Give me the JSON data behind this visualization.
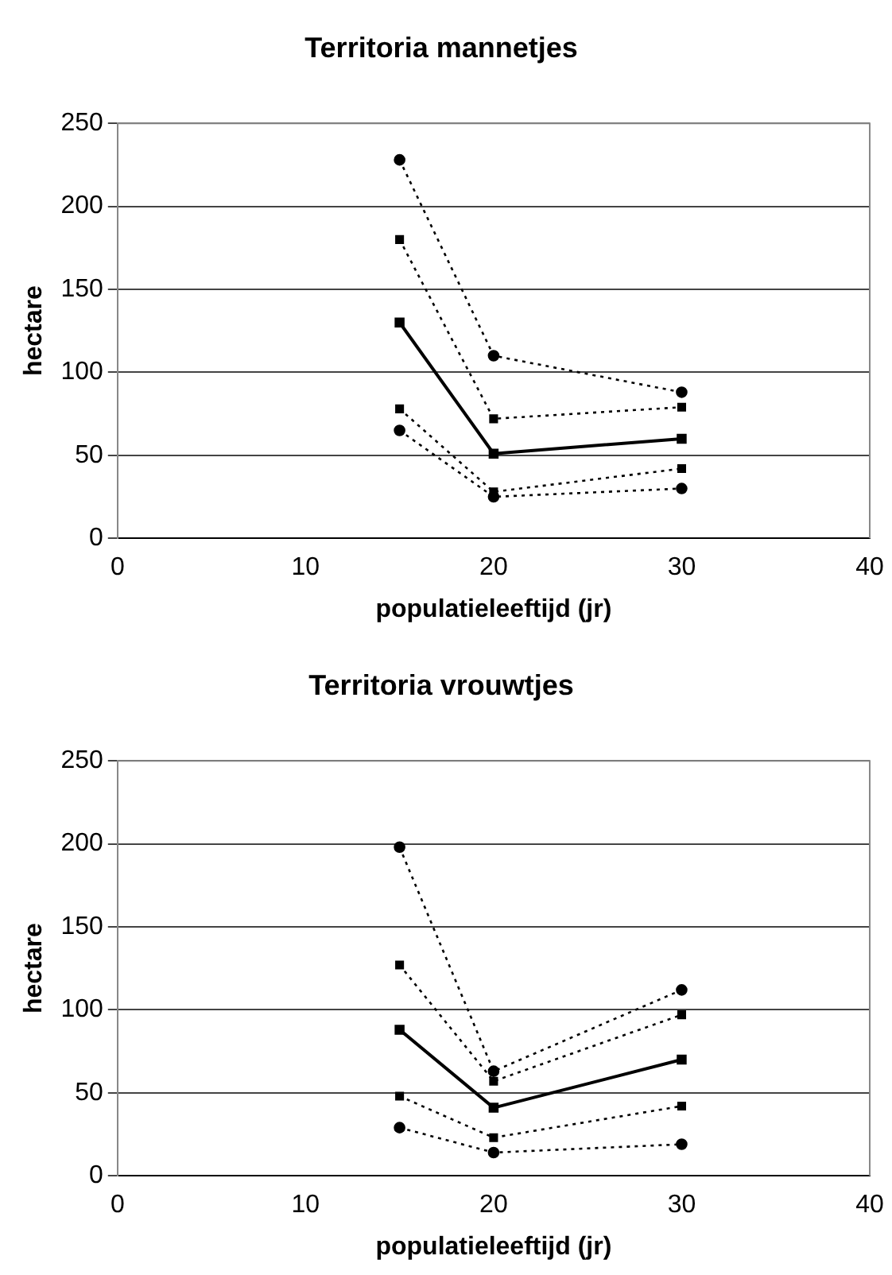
{
  "chart_data": [
    {
      "type": "line",
      "title": "Territoria mannetjes",
      "xlabel": "populatieleeftijd (jr)",
      "ylabel": "hectare",
      "x": [
        15,
        20,
        30
      ],
      "xlim": [
        0,
        40
      ],
      "xticks": [
        0,
        10,
        20,
        30,
        40
      ],
      "ylim": [
        0,
        250
      ],
      "yticks": [
        0,
        50,
        100,
        150,
        200,
        250
      ],
      "grid": "y",
      "legend": false,
      "series": [
        {
          "color": "#000000",
          "values": [
            228,
            110,
            88
          ],
          "marker": "circle",
          "line_style": "dotted"
        },
        {
          "color": "#000000",
          "values": [
            180,
            72,
            79
          ],
          "marker": "square",
          "line_style": "dotted"
        },
        {
          "color": "#000000",
          "values": [
            130,
            51,
            60
          ],
          "marker": "square",
          "line_style": "solid"
        },
        {
          "color": "#000000",
          "values": [
            78,
            28,
            42
          ],
          "marker": "square",
          "line_style": "dotted"
        },
        {
          "color": "#000000",
          "values": [
            65,
            25,
            30
          ],
          "marker": "circle",
          "line_style": "dotted"
        }
      ]
    },
    {
      "type": "line",
      "title": "Territoria vrouwtjes",
      "xlabel": "populatieleeftijd (jr)",
      "ylabel": "hectare",
      "x": [
        15,
        20,
        30
      ],
      "xlim": [
        0,
        40
      ],
      "xticks": [
        0,
        10,
        20,
        30,
        40
      ],
      "ylim": [
        0,
        250
      ],
      "yticks": [
        0,
        50,
        100,
        150,
        200,
        250
      ],
      "grid": "y",
      "legend": false,
      "series": [
        {
          "color": "#000000",
          "values": [
            198,
            63,
            112
          ],
          "marker": "circle",
          "line_style": "dotted"
        },
        {
          "color": "#000000",
          "values": [
            127,
            57,
            97
          ],
          "marker": "square",
          "line_style": "dotted"
        },
        {
          "color": "#000000",
          "values": [
            88,
            41,
            70
          ],
          "marker": "square",
          "line_style": "solid"
        },
        {
          "color": "#000000",
          "values": [
            48,
            23,
            42
          ],
          "marker": "square",
          "line_style": "dotted"
        },
        {
          "color": "#000000",
          "values": [
            29,
            14,
            19
          ],
          "marker": "circle",
          "line_style": "dotted"
        }
      ]
    }
  ]
}
